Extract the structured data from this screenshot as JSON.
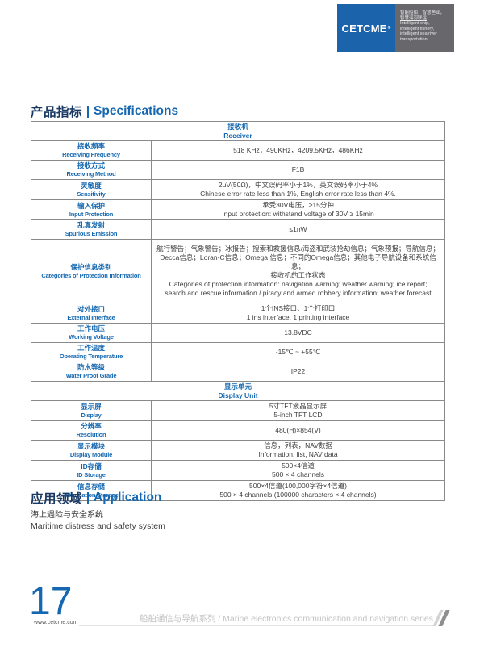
{
  "logo": {
    "brand": "CETCME",
    "reg_mark": "®",
    "tagline_cn_1": "智能船舶，智慧渔业，",
    "tagline_cn_2": "智慧海河联运",
    "tagline_en_1": "Intelligent ship,",
    "tagline_en_2": "intelligent fishery,",
    "tagline_en_3": "intelligent sea river",
    "tagline_en_4": "transportation"
  },
  "specifications": {
    "heading_cn": "产品指标",
    "heading_en": "Specifications",
    "table": {
      "rows": [
        {
          "type": "section",
          "cn": "接收机",
          "en": "Receiver"
        },
        {
          "type": "spec",
          "cn": "接收频率",
          "en": "Receiving Frequency",
          "values": [
            "518 KHz，490KHz，4209.5KHz，486KHz"
          ]
        },
        {
          "type": "spec",
          "cn": "接收方式",
          "en": "Receiving Method",
          "values": [
            "F1B"
          ]
        },
        {
          "type": "spec",
          "cn": "灵敏度",
          "en": "Sensitivity",
          "values": [
            "2uV(50Ω)，中文误码率小于1%，英文误码率小于4%",
            "Chinese error rate less than 1%, English error rate less than 4%."
          ]
        },
        {
          "type": "spec",
          "cn": "输入保护",
          "en": "Input Protection",
          "values": [
            "承受30V电压，≥15分钟",
            "Input protection: withstand voltage of 30V ≥ 15min"
          ]
        },
        {
          "type": "spec",
          "cn": "乱真发射",
          "en": "Spurious Emission",
          "values": [
            "≤1nW"
          ]
        },
        {
          "type": "spec",
          "cn": "保护信息类别",
          "en": "Categories of Protection Information",
          "values": [
            "航行警告；气象警告；冰报告；搜索和救援信息/海盗和武装抢劫信息；气象预报；导航信息；",
            "Decca信息；Loran-C信息；Omega 信息；不同的Omega信息；其他电子导航设备和系统信息；",
            "接收机的工作状态",
            "Categories of protection information: navigation warning; weather warning; ice report;",
            "search and rescue information / piracy and armed robbery information; weather forecast"
          ]
        },
        {
          "type": "spec",
          "cn": "对外接口",
          "en": "External Interface",
          "values": [
            "1个INS接口、1个打印口",
            "1 ins interface, 1 printing interface"
          ]
        },
        {
          "type": "spec",
          "cn": "工作电压",
          "en": "Working Voltage",
          "values": [
            "13.8VDC"
          ]
        },
        {
          "type": "spec",
          "cn": "工作温度",
          "en": "Operating Temperature",
          "values": [
            "-15℃ ~ +55℃"
          ]
        },
        {
          "type": "spec",
          "cn": "防水等级",
          "en": "Water Proof Grade",
          "values": [
            "IP22"
          ]
        },
        {
          "type": "section",
          "cn": "显示单元",
          "en": "Display Unit"
        },
        {
          "type": "spec",
          "cn": "显示屏",
          "en": "Display",
          "values": [
            "5寸TFT液晶显示屏",
            "5-inch TFT LCD"
          ]
        },
        {
          "type": "spec",
          "cn": "分辨率",
          "en": "Resolution",
          "values": [
            "480(H)×854(V)"
          ]
        },
        {
          "type": "spec",
          "cn": "显示模块",
          "en": "Display Module",
          "values": [
            "信息，列表，NAV数据",
            "Information, list, NAV data"
          ]
        },
        {
          "type": "spec",
          "cn": "ID存储",
          "en": "ID Storage",
          "values": [
            "500×4信道",
            "500 × 4 channels"
          ]
        },
        {
          "type": "spec",
          "cn": "信息存储",
          "en": "Information Storage",
          "values": [
            "500×4信道(100,000字符×4信道)",
            "500 × 4 channels (100000 characters × 4 channels)"
          ]
        }
      ]
    }
  },
  "application": {
    "heading_cn": "应用领域",
    "heading_en": "Application",
    "body_cn": "海上遇险与安全系统",
    "body_en": "Maritime distress and safety system"
  },
  "footer": {
    "page_number": "17",
    "website": "www.cetcme.com",
    "series": "船舶通信与导航系列 / Marine electronics communication and navigation series"
  },
  "colors": {
    "accent_blue": "#1467b0",
    "heading_dark_navy": "#1a3a64",
    "logo_blue_bg": "#1b63ab",
    "logo_gray_bg": "#68686c",
    "table_border": "#8a8a8a",
    "value_text": "#3d3d3d",
    "footer_gray": "#c4c4c4"
  }
}
